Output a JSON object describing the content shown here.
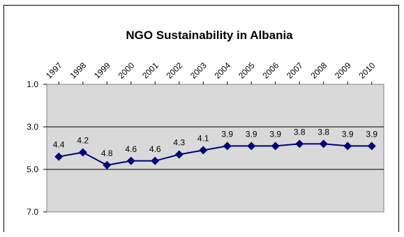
{
  "chart_data": {
    "type": "line",
    "title": "NGO Sustainability in Albania",
    "categories": [
      "1997",
      "1998",
      "1999",
      "2000",
      "2001",
      "2002",
      "2003",
      "2004",
      "2005",
      "2006",
      "2007",
      "2008",
      "2009",
      "2010"
    ],
    "series": [
      {
        "values": [
          4.4,
          4.2,
          4.8,
          4.6,
          4.6,
          4.3,
          4.1,
          3.9,
          3.9,
          3.9,
          3.8,
          3.8,
          3.9,
          3.9
        ]
      }
    ],
    "data_labels": [
      "4.4",
      "4.2",
      "4.8",
      "4.6",
      "4.6",
      "4.3",
      "4.1",
      "3.9",
      "3.9",
      "3.9",
      "3.8",
      "3.8",
      "3.9",
      "3.9"
    ],
    "y_ticks": [
      "1.0",
      "3.0",
      "5.0",
      "7.0"
    ],
    "y_tick_values": [
      1,
      3,
      5,
      7
    ],
    "ylim": [
      1,
      7
    ],
    "y_inverted": true,
    "x_tick_position": "top",
    "grid": true,
    "colors": {
      "line": "#000080",
      "marker": "#000080",
      "plot_bg": "#d9d9d9",
      "grid": "#000000"
    }
  }
}
